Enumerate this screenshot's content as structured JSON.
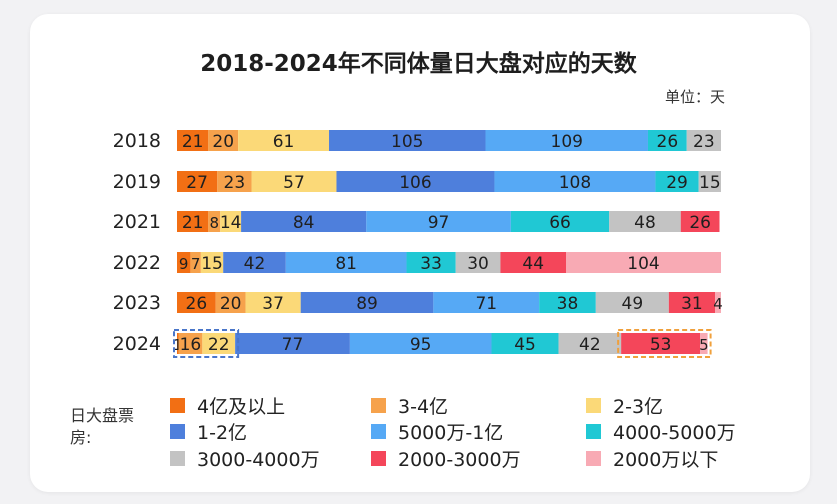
{
  "chart_data": {
    "type": "bar",
    "orientation": "horizontal",
    "stacked": true,
    "title": "2018-2024年不同体量日大盘对应的天数",
    "unit_label": "单位：天",
    "categories": [
      "2018",
      "2019",
      "2021",
      "2022",
      "2023",
      "2024"
    ],
    "series": [
      {
        "name": "4亿及以上",
        "color": "#f26f14",
        "values": [
          21,
          27,
          21,
          9,
          26,
          1
        ]
      },
      {
        "name": "3-4亿",
        "color": "#f6a24c",
        "values": [
          20,
          23,
          8,
          7,
          20,
          16
        ]
      },
      {
        "name": "2-3亿",
        "color": "#fbd978",
        "values": [
          61,
          57,
          14,
          15,
          37,
          22
        ]
      },
      {
        "name": "1-2亿",
        "color": "#4e7fdc",
        "values": [
          105,
          106,
          84,
          42,
          89,
          77
        ]
      },
      {
        "name": "5000万-1亿",
        "color": "#56a9f5",
        "values": [
          109,
          108,
          97,
          81,
          71,
          95
        ]
      },
      {
        "name": "4000-5000万",
        "color": "#20c8d4",
        "values": [
          26,
          29,
          66,
          33,
          38,
          45
        ]
      },
      {
        "name": "3000-4000万",
        "color": "#c3c3c3",
        "values": [
          23,
          15,
          48,
          30,
          49,
          42
        ]
      },
      {
        "name": "2000-3000万",
        "color": "#f4465a",
        "values": [
          0,
          0,
          26,
          44,
          31,
          53
        ]
      },
      {
        "name": "2000万以下",
        "color": "#f8aab4",
        "values": [
          0,
          0,
          0,
          104,
          4,
          5
        ]
      }
    ],
    "legend_title": "日大盘票房:",
    "highlights": [
      {
        "category": "2024",
        "series": [
          "4亿及以上",
          "3-4亿",
          "2-3亿"
        ],
        "color": "#4a76c9"
      },
      {
        "category": "2024",
        "series": [
          "2000-3000万",
          "2000万以下"
        ],
        "color": "#f0a03c"
      }
    ]
  }
}
